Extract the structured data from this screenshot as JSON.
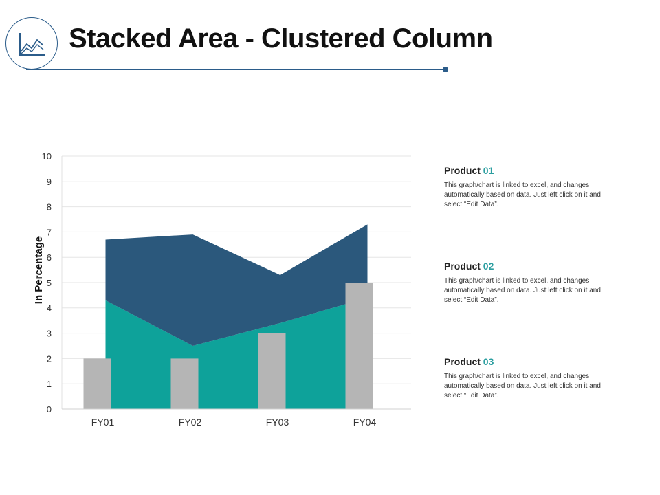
{
  "header": {
    "title": "Stacked Area - Clustered Column",
    "icon": "area-chart-icon",
    "accent_color": "#2b5c8a"
  },
  "legend": [
    {
      "label": "Product",
      "number": "01",
      "description": "This graph/chart is linked to excel, and changes automatically based on data. Just left click on it and select “Edit Data”."
    },
    {
      "label": "Product",
      "number": "02",
      "description": "This graph/chart is linked to excel, and changes automatically based on data. Just left click on it and select “Edit Data”."
    },
    {
      "label": "Product",
      "number": "03",
      "description": "This graph/chart is linked to excel, and changes automatically based on data. Just left click on it and select “Edit Data”."
    }
  ],
  "chart_data": {
    "type": "area",
    "categories": [
      "FY01",
      "FY02",
      "FY03",
      "FY04"
    ],
    "ylabel": "In Percentage",
    "ylim": [
      0,
      10
    ],
    "yticks": [
      0,
      1,
      2,
      3,
      4,
      5,
      6,
      7,
      8,
      9,
      10
    ],
    "grid": true,
    "stacked_area": [
      {
        "values": [
          4.3,
          2.5,
          3.4,
          4.4
        ],
        "color": "#0ea29a"
      },
      {
        "values": [
          2.4,
          4.4,
          1.9,
          2.9
        ],
        "color": "#2b587c"
      }
    ],
    "columns": {
      "values": [
        2,
        2,
        3,
        5
      ],
      "color": "#b5b5b5"
    }
  }
}
